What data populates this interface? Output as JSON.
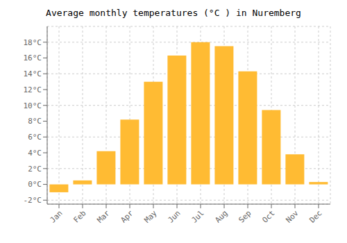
{
  "chart_data": {
    "type": "bar",
    "title": "Average monthly temperatures (°C ) in Nuremberg",
    "categories": [
      "Jan",
      "Feb",
      "Mar",
      "Apr",
      "May",
      "Jun",
      "Jul",
      "Aug",
      "Sep",
      "Oct",
      "Nov",
      "Dec"
    ],
    "values": [
      -1.0,
      0.5,
      4.2,
      8.2,
      13.0,
      16.3,
      18.0,
      17.5,
      14.3,
      9.4,
      3.8,
      0.3
    ],
    "color": "#FFBB33",
    "ylim": [
      -2.5,
      20
    ],
    "yticks": [
      {
        "value": -2,
        "label": "-2°C"
      },
      {
        "value": 0,
        "label": "0°C"
      },
      {
        "value": 2,
        "label": "2°C"
      },
      {
        "value": 4,
        "label": "4°C"
      },
      {
        "value": 6,
        "label": "6°C"
      },
      {
        "value": 8,
        "label": "8°C"
      },
      {
        "value": 10,
        "label": "10°C"
      },
      {
        "value": 12,
        "label": "12°C"
      },
      {
        "value": 14,
        "label": "14°C"
      },
      {
        "value": 16,
        "label": "16°C"
      },
      {
        "value": 18,
        "label": "18°C"
      }
    ],
    "grid": true
  }
}
